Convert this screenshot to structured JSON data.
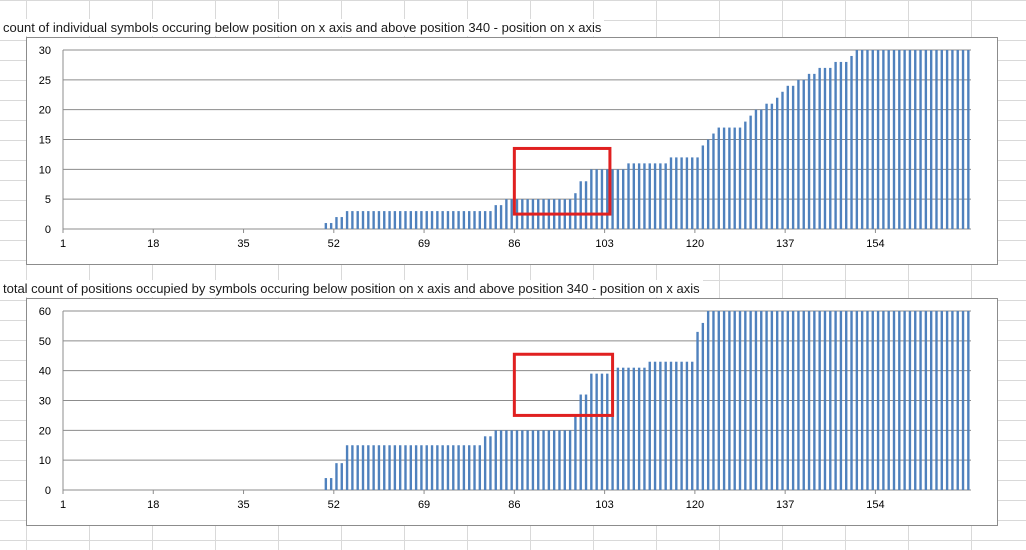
{
  "chart_data": [
    {
      "type": "bar",
      "title": "count of individual symbols occuring below position on x axis and above position 340 - position on x axis",
      "x_start": 1,
      "x_end": 171,
      "xticks": [
        1,
        18,
        35,
        52,
        69,
        86,
        103,
        120,
        137,
        154
      ],
      "yticks": [
        0,
        5,
        10,
        15,
        20,
        25,
        30
      ],
      "ylim": [
        0,
        30
      ],
      "grid": true,
      "bar_color": "#4f81bd",
      "steps": [
        [
          1,
          0
        ],
        [
          50,
          1
        ],
        [
          52,
          2
        ],
        [
          54,
          3
        ],
        [
          82,
          4
        ],
        [
          84,
          5
        ],
        [
          97,
          6
        ],
        [
          98,
          8
        ],
        [
          100,
          10
        ],
        [
          107,
          11
        ],
        [
          115,
          12
        ],
        [
          121,
          14
        ],
        [
          122,
          15
        ],
        [
          123,
          16
        ],
        [
          124,
          17
        ],
        [
          129,
          18
        ],
        [
          130,
          19
        ],
        [
          131,
          20
        ],
        [
          133,
          21
        ],
        [
          135,
          22
        ],
        [
          136,
          23
        ],
        [
          137,
          24
        ],
        [
          139,
          25
        ],
        [
          141,
          26
        ],
        [
          143,
          27
        ],
        [
          146,
          28
        ],
        [
          149,
          29
        ],
        [
          150,
          30
        ]
      ],
      "highlight": {
        "x_range": [
          86,
          104
        ],
        "y_range": [
          2.5,
          13.5
        ],
        "color": "#e02020"
      }
    },
    {
      "type": "bar",
      "title": "total count of positions occupied by symbols occuring below position on x axis and above position 340 - position on x axis",
      "x_start": 1,
      "x_end": 171,
      "xticks": [
        1,
        18,
        35,
        52,
        69,
        86,
        103,
        120,
        137,
        154
      ],
      "yticks": [
        0,
        10,
        20,
        30,
        40,
        50,
        60
      ],
      "ylim": [
        0,
        60
      ],
      "grid": true,
      "bar_color": "#4f81bd",
      "steps": [
        [
          1,
          0
        ],
        [
          50,
          4
        ],
        [
          52,
          9
        ],
        [
          54,
          15
        ],
        [
          80,
          18
        ],
        [
          82,
          20
        ],
        [
          97,
          25
        ],
        [
          98,
          32
        ],
        [
          100,
          39
        ],
        [
          105,
          41
        ],
        [
          111,
          43
        ],
        [
          118,
          43
        ],
        [
          120,
          53
        ],
        [
          121,
          56
        ],
        [
          122,
          60
        ]
      ],
      "highlight": {
        "x_range": [
          86,
          104.5
        ],
        "y_range": [
          25,
          45.5
        ],
        "color": "#e02020"
      }
    }
  ]
}
